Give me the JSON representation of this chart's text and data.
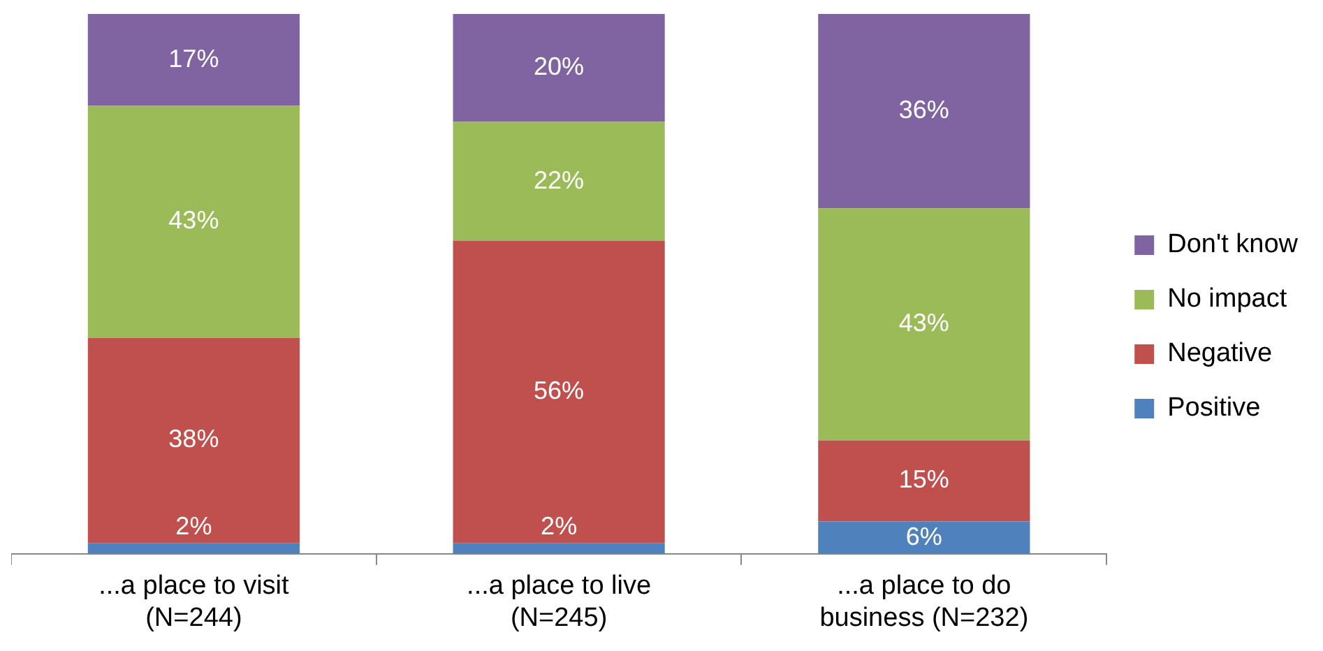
{
  "chart_data": {
    "type": "bar",
    "stacked": true,
    "legend": "right",
    "categories": [
      "...a place to visit\n(N=244)",
      "...a place to live\n(N=245)",
      "...a place to do\nbusiness (N=232)"
    ],
    "series": [
      {
        "name": "Positive",
        "color": "#4f81bd",
        "values": [
          2,
          2,
          6
        ],
        "value_labels": [
          "2%",
          "2%",
          "6%"
        ]
      },
      {
        "name": "Negative",
        "color": "#c0504d",
        "values": [
          38,
          56,
          15
        ],
        "value_labels": [
          "38%",
          "56%",
          "15%"
        ]
      },
      {
        "name": "No impact",
        "color": "#9bbb59",
        "values": [
          43,
          22,
          43
        ],
        "value_labels": [
          "43%",
          "22%",
          "43%"
        ]
      },
      {
        "name": "Don't know",
        "color": "#8064a2",
        "values": [
          17,
          20,
          36
        ],
        "value_labels": [
          "17%",
          "20%",
          "36%"
        ]
      }
    ]
  }
}
